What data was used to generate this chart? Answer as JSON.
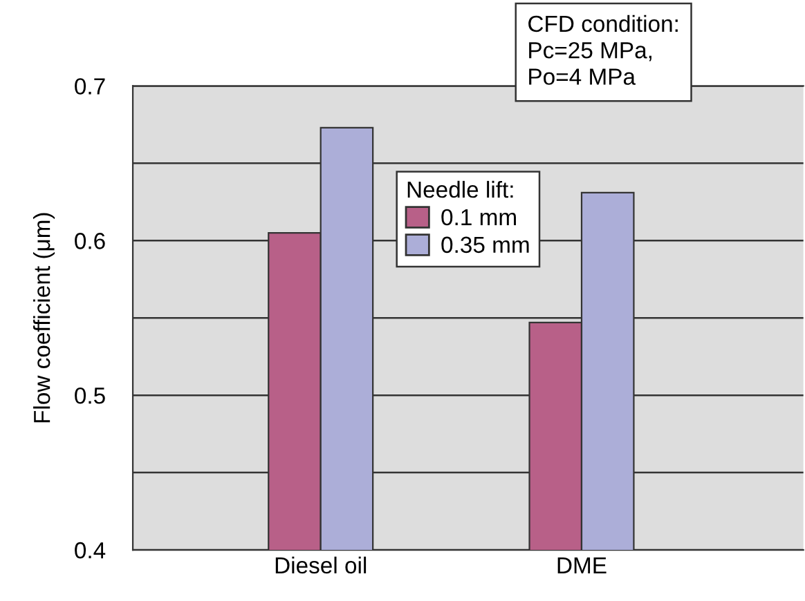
{
  "chart_data": {
    "type": "bar",
    "ylabel": "Flow coefficient (μm)",
    "categories": [
      "Diesel oil",
      "DME"
    ],
    "series": [
      {
        "name": "0.1 mm",
        "color": "#b86088",
        "values": [
          0.605,
          0.547
        ]
      },
      {
        "name": "0.35 mm",
        "color": "#acaed8",
        "values": [
          0.673,
          0.631
        ]
      }
    ],
    "legend_title": "Needle lift:",
    "legend": "top",
    "ylim": [
      0.4,
      0.7
    ],
    "yticks": [
      0.4,
      {
        "value": 0.45,
        "label": null
      },
      0.5,
      {
        "value": 0.55,
        "label": null
      },
      0.6,
      {
        "value": 0.65,
        "label": null
      },
      0.7
    ],
    "grid": "y",
    "annotations": [
      "CFD condition:\nPc=25 MPa,\nPo=4 MPa"
    ]
  }
}
